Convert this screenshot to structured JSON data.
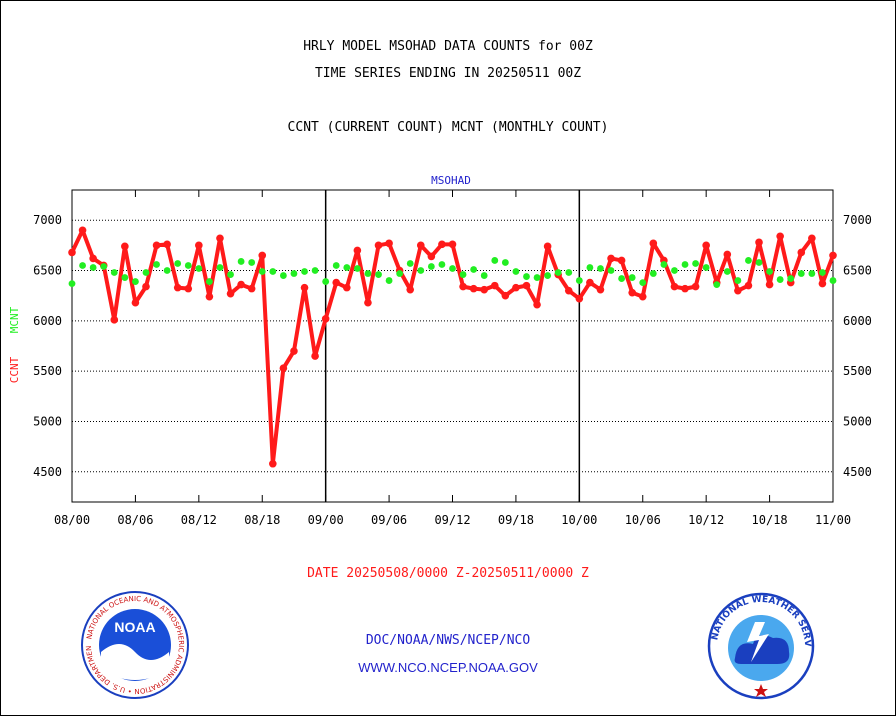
{
  "header": {
    "title_line1": "HRLY MODEL MSOHAD DATA COUNTS for 00Z",
    "title_line2": "TIME SERIES ENDING IN 20250511 00Z",
    "legend_line": "CCNT (CURRENT COUNT) MCNT (MONTHLY COUNT)"
  },
  "footer": {
    "date_range": "DATE 20250508/0000 Z-20250511/0000 Z",
    "org_line": "DOC/NOAA/NWS/NCEP/NCO",
    "url_line": "WWW.NCO.NCEP.NOAA.GOV"
  },
  "logos": {
    "noaa_text": "NOAA",
    "noaa_ring_text": "NATIONAL OCEANIC AND ATMOSPHERIC ADMINISTRATION • U.S. DEPARTMENT OF COMMERCE •",
    "nws_ring_text": "NATIONAL WEATHER SERVICE"
  },
  "colors": {
    "ccnt": "#ff1a1a",
    "mcnt": "#22ee22",
    "grid": "#000000",
    "blue_text": "#2222cc",
    "red_text": "#ff1a1a"
  },
  "chart_data": {
    "type": "line",
    "subtitle": "MSOHAD",
    "ylabel_ccnt": "CCNT",
    "ylabel_mcnt": "MCNT",
    "ylim": [
      4200,
      7300
    ],
    "yticks": [
      4500,
      5000,
      5500,
      6000,
      6500,
      7000
    ],
    "xlim": [
      0,
      72
    ],
    "xticks": [
      {
        "x": 0,
        "label": "08/00"
      },
      {
        "x": 6,
        "label": "08/06"
      },
      {
        "x": 12,
        "label": "08/12"
      },
      {
        "x": 18,
        "label": "08/18"
      },
      {
        "x": 24,
        "label": "09/00"
      },
      {
        "x": 30,
        "label": "09/06"
      },
      {
        "x": 36,
        "label": "09/12"
      },
      {
        "x": 42,
        "label": "09/18"
      },
      {
        "x": 48,
        "label": "10/00"
      },
      {
        "x": 54,
        "label": "10/06"
      },
      {
        "x": 60,
        "label": "10/12"
      },
      {
        "x": 66,
        "label": "10/18"
      },
      {
        "x": 72,
        "label": "11/00"
      }
    ],
    "day_dividers": [
      24,
      48
    ],
    "grid": true,
    "series": [
      {
        "name": "CCNT",
        "values": [
          6680,
          6900,
          6620,
          6550,
          6010,
          6740,
          6180,
          6340,
          6750,
          6760,
          6330,
          6320,
          6750,
          6240,
          6820,
          6270,
          6360,
          6320,
          6650,
          4580,
          5530,
          5700,
          6330,
          5650,
          6020,
          6380,
          6330,
          6700,
          6180,
          6750,
          6770,
          6500,
          6310,
          6750,
          6640,
          6760,
          6760,
          6340,
          6320,
          6310,
          6350,
          6250,
          6330,
          6350,
          6160,
          6740,
          6460,
          6300,
          6220,
          6380,
          6310,
          6620,
          6600,
          6280,
          6240,
          6770,
          6600,
          6340,
          6320,
          6340,
          6750,
          6380,
          6660,
          6300,
          6350,
          6780,
          6360,
          6840,
          6380,
          6680,
          6820,
          6370,
          6650
        ]
      },
      {
        "name": "MCNT",
        "values": [
          6370,
          6550,
          6530,
          6540,
          6480,
          6430,
          6390,
          6480,
          6560,
          6500,
          6570,
          6550,
          6520,
          6390,
          6530,
          6460,
          6590,
          6580,
          6490,
          6490,
          6450,
          6470,
          6490,
          6500,
          6390,
          6550,
          6530,
          6520,
          6470,
          6460,
          6400,
          6470,
          6570,
          6500,
          6540,
          6560,
          6520,
          6460,
          6510,
          6450,
          6600,
          6580,
          6490,
          6440,
          6430,
          6450,
          6480,
          6480,
          6400,
          6530,
          6520,
          6500,
          6420,
          6430,
          6380,
          6470,
          6560,
          6500,
          6560,
          6570,
          6530,
          6360,
          6490,
          6400,
          6600,
          6580,
          6490,
          6410,
          6420,
          6470,
          6470,
          6480,
          6400
        ]
      }
    ]
  }
}
